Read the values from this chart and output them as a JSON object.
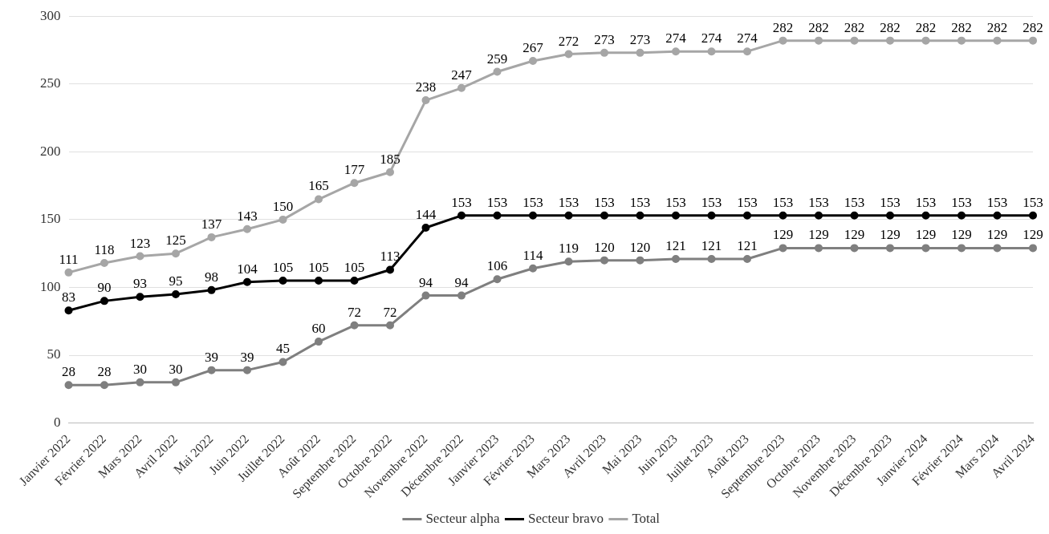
{
  "chart_data": {
    "type": "line",
    "categories": [
      "Janvier 2022",
      "Février 2022",
      "Mars 2022",
      "Avril 2022",
      "Mai 2022",
      "Juin 2022",
      "Juillet 2022",
      "Août 2022",
      "Septembre 2022",
      "Octobre 2022",
      "Novembre 2022",
      "Décembre 2022",
      "Janvier 2023",
      "Février 2023",
      "Mars 2023",
      "Avril 2023",
      "Mai 2023",
      "Juin 2023",
      "Juillet 2023",
      "Août 2023",
      "Septembre 2023",
      "Octobre 2023",
      "Novembre 2023",
      "Décembre 2023",
      "Janvier 2024",
      "Février 2024",
      "Mars 2024",
      "Avril 2024"
    ],
    "series": [
      {
        "name": "Secteur alpha",
        "color": "#7f7f7f",
        "values": [
          28,
          28,
          30,
          30,
          39,
          39,
          45,
          60,
          72,
          72,
          94,
          94,
          106,
          114,
          119,
          120,
          120,
          121,
          121,
          121,
          129,
          129,
          129,
          129,
          129,
          129,
          129,
          129
        ]
      },
      {
        "name": "Secteur bravo",
        "color": "#000000",
        "values": [
          83,
          90,
          93,
          95,
          98,
          104,
          105,
          105,
          105,
          113,
          144,
          153,
          153,
          153,
          153,
          153,
          153,
          153,
          153,
          153,
          153,
          153,
          153,
          153,
          153,
          153,
          153,
          153
        ]
      },
      {
        "name": "Total",
        "color": "#a6a6a6",
        "values": [
          111,
          118,
          123,
          125,
          137,
          143,
          150,
          165,
          177,
          185,
          238,
          247,
          259,
          267,
          272,
          273,
          273,
          274,
          274,
          274,
          282,
          282,
          282,
          282,
          282,
          282,
          282,
          282
        ]
      }
    ],
    "ylim": [
      0,
      300
    ],
    "yticks": [
      0,
      50,
      100,
      150,
      200,
      250,
      300
    ],
    "grid": "y",
    "legend": "bottom",
    "marker": "circle",
    "line_style": "solid",
    "data_labels": true
  }
}
